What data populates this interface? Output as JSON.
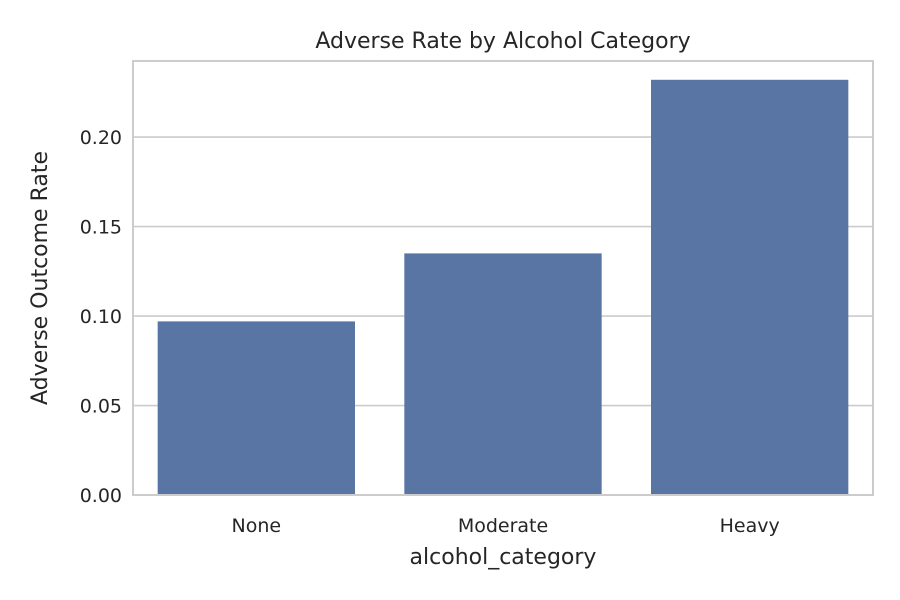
{
  "chart_data": {
    "type": "bar",
    "title": "Adverse Rate by Alcohol Category",
    "xlabel": "alcohol_category",
    "ylabel": "Adverse Outcome Rate",
    "categories": [
      "None",
      "Moderate",
      "Heavy"
    ],
    "values": [
      0.097,
      0.135,
      0.232
    ],
    "ylim": [
      0,
      0.2425
    ],
    "yticks": [
      0.0,
      0.05,
      0.1,
      0.15,
      0.2
    ],
    "ytick_labels": [
      "0.00",
      "0.05",
      "0.10",
      "0.15",
      "0.20"
    ],
    "grid": true,
    "legend": "none",
    "colors": {
      "bar": "#5975a4",
      "grid": "#cccccc",
      "spine": "#cccccc",
      "text": "#262626"
    }
  }
}
